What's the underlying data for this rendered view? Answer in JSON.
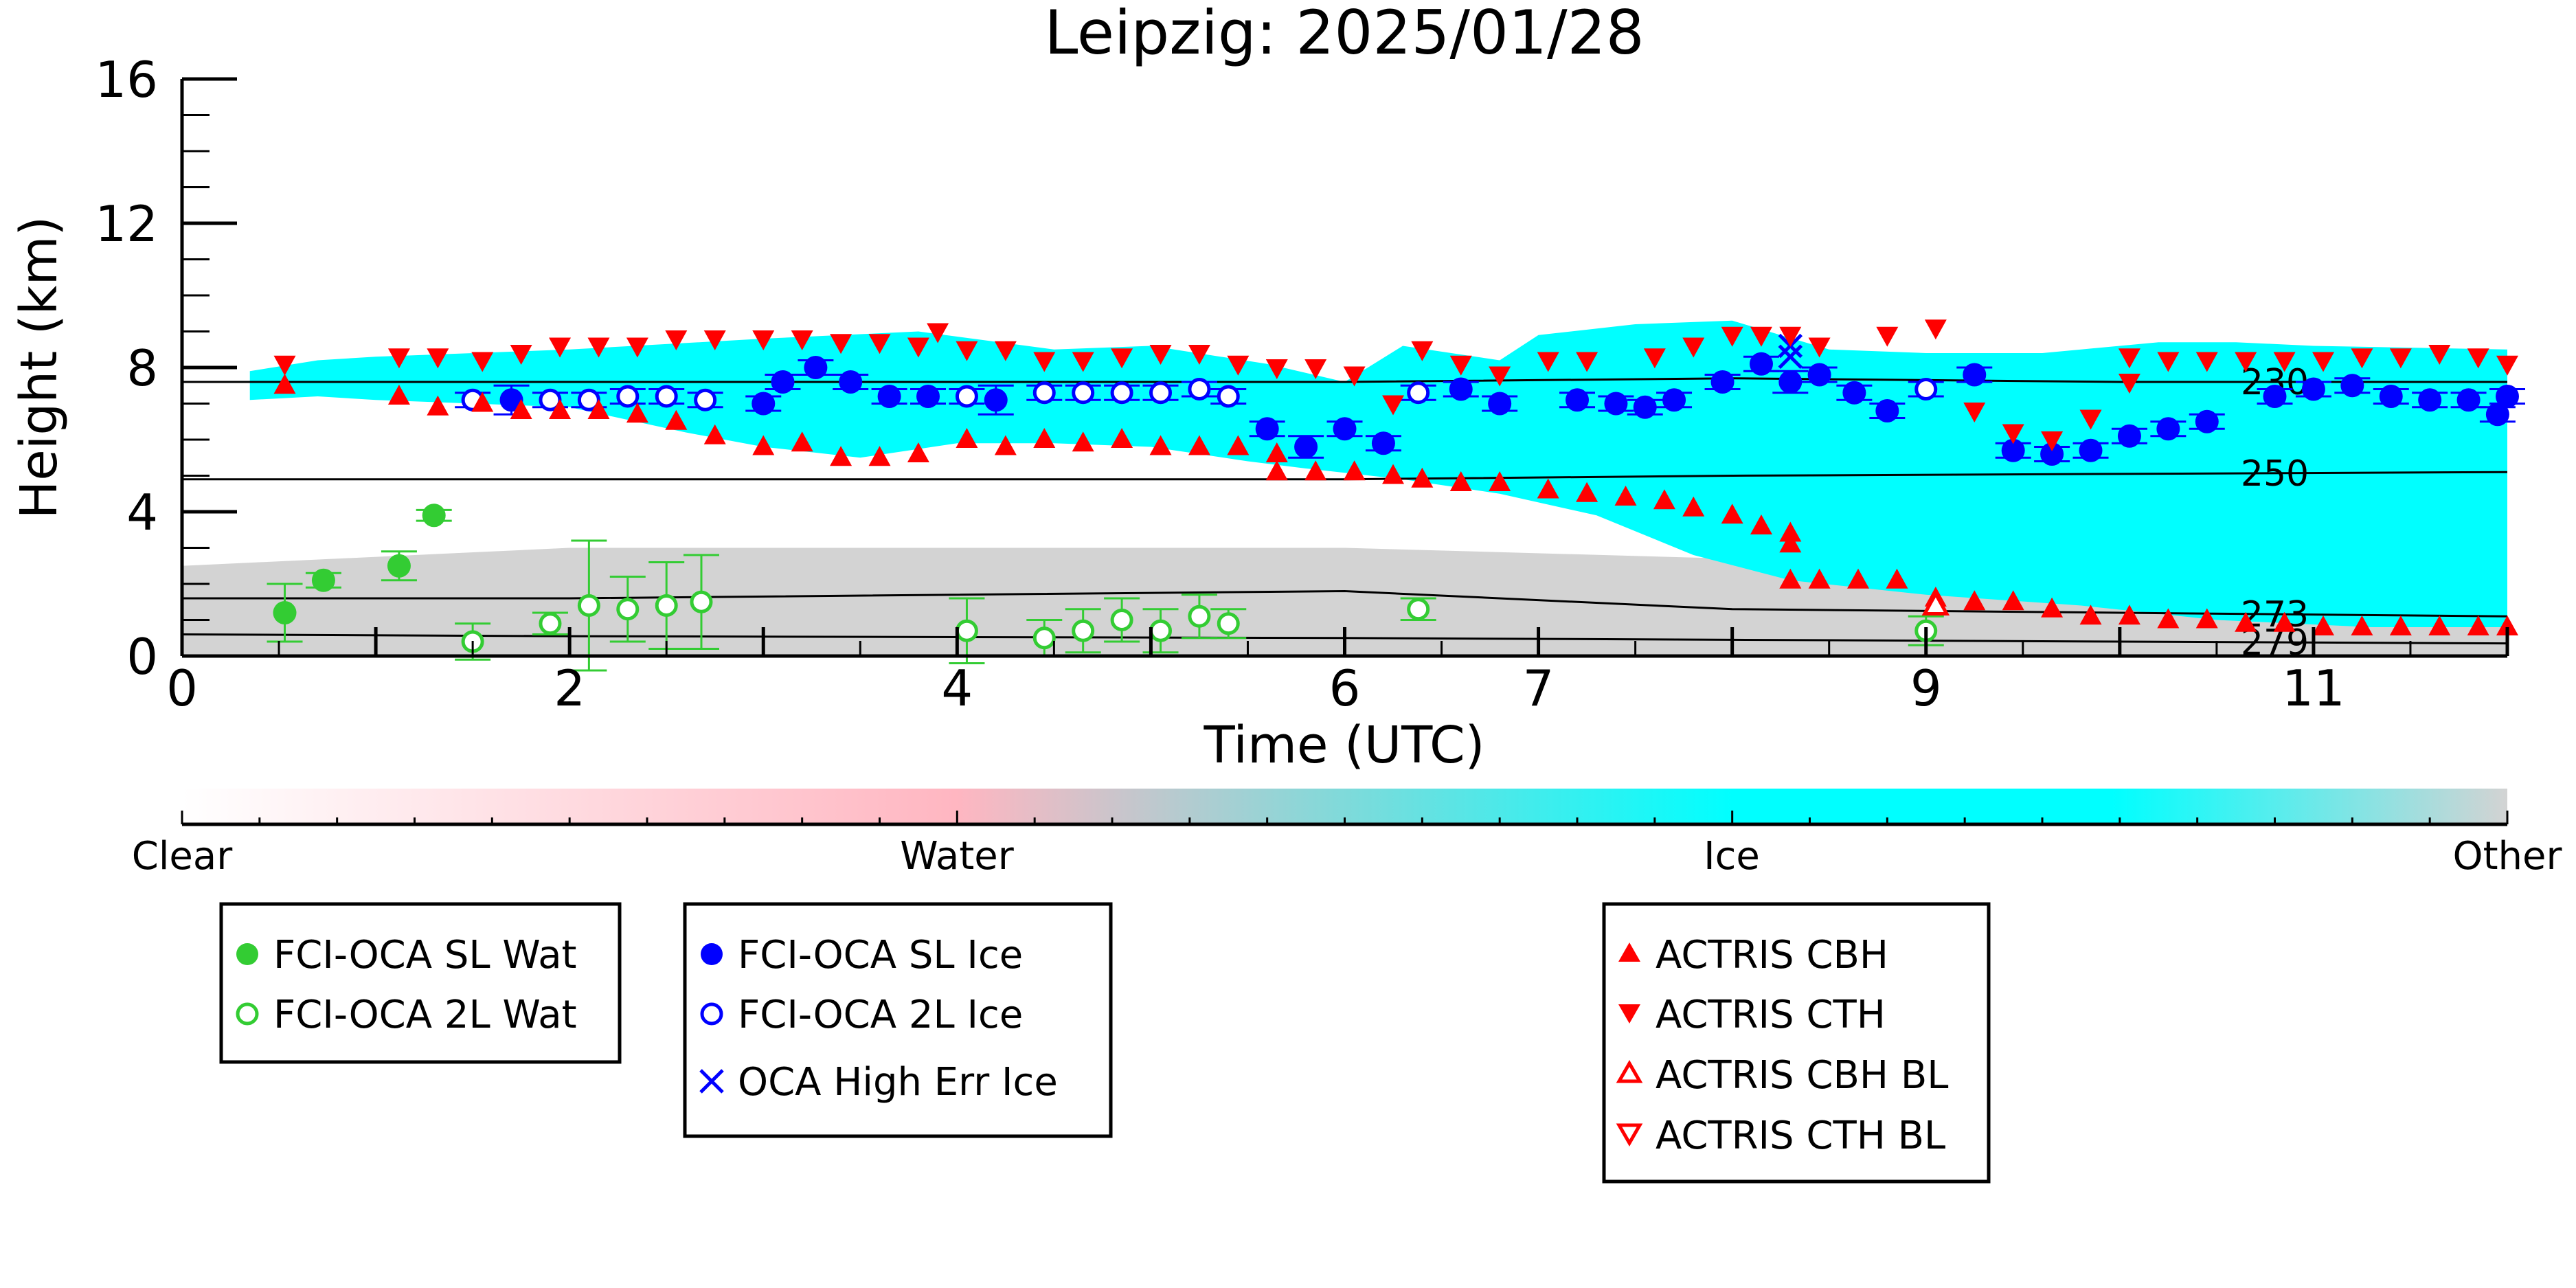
{
  "chart_data": {
    "type": "scatter",
    "title": "Leipzig: 2025/01/28",
    "xlabel": "Time (UTC)",
    "ylabel": "Height (km)",
    "xlim": [
      0,
      12
    ],
    "ylim": [
      0,
      16
    ],
    "x_ticks": [
      0,
      2,
      4,
      6,
      7,
      9,
      11
    ],
    "x_tick_labels": [
      "0",
      "2",
      "4",
      "6",
      "7",
      "9",
      "11"
    ],
    "y_ticks": [
      0,
      4,
      8,
      12,
      16
    ],
    "y_tick_labels": [
      "0",
      "4",
      "8",
      "12",
      "16"
    ],
    "colorbar": {
      "labels": [
        "Clear",
        "Water",
        "Ice",
        "Other"
      ],
      "colors": [
        "#ffffff",
        "#ffb6c1",
        "#00ffff",
        "#d3d3d3"
      ]
    },
    "background": {
      "ice_color": "#00ffff",
      "other_color": "#d3d3d3",
      "ice_top": [
        [
          0.35,
          7.9
        ],
        [
          0.7,
          8.2
        ],
        [
          1.0,
          8.3
        ],
        [
          2.0,
          8.5
        ],
        [
          3.0,
          8.8
        ],
        [
          3.8,
          9.0
        ],
        [
          4.5,
          8.5
        ],
        [
          5.0,
          8.6
        ],
        [
          5.6,
          8.1
        ],
        [
          6.0,
          7.6
        ],
        [
          6.3,
          8.6
        ],
        [
          6.8,
          8.2
        ],
        [
          7.0,
          8.9
        ],
        [
          7.5,
          9.2
        ],
        [
          8.0,
          9.3
        ],
        [
          8.5,
          8.5
        ],
        [
          9.0,
          8.4
        ],
        [
          9.6,
          8.4
        ],
        [
          10.2,
          8.7
        ],
        [
          10.6,
          8.7
        ],
        [
          11.0,
          8.6
        ],
        [
          12.0,
          8.5
        ]
      ],
      "ice_bottom": [
        [
          0.35,
          7.1
        ],
        [
          0.7,
          7.2
        ],
        [
          1.0,
          7.1
        ],
        [
          2.0,
          6.9
        ],
        [
          2.6,
          6.2
        ],
        [
          3.0,
          5.8
        ],
        [
          3.5,
          5.5
        ],
        [
          4.0,
          5.9
        ],
        [
          4.5,
          5.9
        ],
        [
          5.0,
          5.8
        ],
        [
          5.5,
          5.4
        ],
        [
          5.8,
          5.2
        ],
        [
          6.3,
          4.9
        ],
        [
          6.8,
          4.5
        ],
        [
          7.3,
          3.9
        ],
        [
          7.8,
          2.8
        ],
        [
          8.3,
          2.1
        ],
        [
          9.0,
          1.7
        ],
        [
          9.8,
          1.4
        ],
        [
          10.5,
          1.0
        ],
        [
          11.3,
          0.8
        ],
        [
          12.0,
          0.8
        ]
      ],
      "other_top": [
        [
          0,
          2.5
        ],
        [
          2,
          3.0
        ],
        [
          4,
          3.0
        ],
        [
          6,
          3.0
        ],
        [
          8,
          2.7
        ],
        [
          9,
          2.3
        ],
        [
          10,
          1.8
        ],
        [
          12,
          1.6
        ]
      ]
    },
    "contours": [
      {
        "label": "230",
        "y": [
          7.6,
          7.6,
          7.6,
          7.7,
          7.6,
          7.6
        ]
      },
      {
        "label": "250",
        "y": [
          4.9,
          4.9,
          4.9,
          5.0,
          5.05,
          5.1
        ]
      },
      {
        "label": "273",
        "y": [
          1.6,
          1.6,
          1.8,
          1.3,
          1.2,
          1.1
        ]
      },
      {
        "label": "279",
        "y": [
          0.6,
          0.55,
          0.5,
          0.45,
          0.4,
          0.35
        ]
      }
    ],
    "contour_x": [
      0,
      2,
      6,
      8,
      10,
      12
    ],
    "series": [
      {
        "name": "FCI-OCA SL Wat",
        "marker": "filled-circle",
        "color": "#33cc33",
        "points": [
          [
            0.53,
            1.2,
            0.8
          ],
          [
            0.73,
            2.1,
            0.2
          ],
          [
            1.12,
            2.5,
            0.4
          ],
          [
            1.3,
            3.9,
            0.15
          ]
        ]
      },
      {
        "name": "FCI-OCA 2L Wat",
        "marker": "open-circle",
        "color": "#33cc33",
        "points": [
          [
            1.5,
            0.4,
            0.5
          ],
          [
            1.9,
            0.9,
            0.3
          ],
          [
            2.1,
            1.4,
            1.8
          ],
          [
            2.3,
            1.3,
            0.9
          ],
          [
            2.5,
            1.4,
            1.2
          ],
          [
            2.68,
            1.5,
            1.3
          ],
          [
            4.05,
            0.7,
            0.9
          ],
          [
            4.45,
            0.5,
            0.5
          ],
          [
            4.65,
            0.7,
            0.6
          ],
          [
            4.85,
            1.0,
            0.6
          ],
          [
            5.05,
            0.7,
            0.6
          ],
          [
            5.25,
            1.1,
            0.6
          ],
          [
            5.4,
            0.9,
            0.4
          ],
          [
            6.38,
            1.3,
            0.3
          ],
          [
            9.0,
            0.7,
            0.4
          ]
        ]
      },
      {
        "name": "FCI-OCA SL Ice",
        "marker": "filled-circle",
        "color": "#0000ff",
        "points": [
          [
            1.7,
            7.1,
            0.4
          ],
          [
            3.0,
            7.0,
            0.2
          ],
          [
            3.1,
            7.6,
            0.2
          ],
          [
            3.27,
            8.0,
            0.2
          ],
          [
            3.45,
            7.6,
            0.2
          ],
          [
            3.65,
            7.2,
            0.2
          ],
          [
            3.85,
            7.2,
            0.2
          ],
          [
            4.2,
            7.1,
            0.4
          ],
          [
            5.6,
            6.3,
            0.2
          ],
          [
            5.8,
            5.8,
            0.3
          ],
          [
            6.0,
            6.3,
            0.2
          ],
          [
            6.2,
            5.9,
            0.2
          ],
          [
            6.6,
            7.4,
            0.2
          ],
          [
            6.8,
            7.0,
            0.2
          ],
          [
            7.2,
            7.1,
            0.2
          ],
          [
            7.4,
            7.0,
            0.2
          ],
          [
            7.55,
            6.9,
            0.2
          ],
          [
            7.7,
            7.1,
            0.2
          ],
          [
            7.95,
            7.6,
            0.2
          ],
          [
            8.15,
            8.1,
            0.2
          ],
          [
            8.3,
            7.6,
            0.3
          ],
          [
            8.45,
            7.8,
            0.2
          ],
          [
            8.63,
            7.3,
            0.2
          ],
          [
            8.8,
            6.8,
            0.2
          ],
          [
            9.25,
            7.8,
            0.2
          ],
          [
            9.45,
            5.7,
            0.2
          ],
          [
            9.65,
            5.6,
            0.2
          ],
          [
            9.85,
            5.7,
            0.2
          ],
          [
            10.05,
            6.1,
            0.2
          ],
          [
            10.25,
            6.3,
            0.2
          ],
          [
            10.45,
            6.5,
            0.2
          ],
          [
            10.8,
            7.2,
            0.2
          ],
          [
            11.0,
            7.4,
            0.2
          ],
          [
            11.2,
            7.5,
            0.2
          ],
          [
            11.4,
            7.2,
            0.2
          ],
          [
            11.6,
            7.1,
            0.2
          ],
          [
            11.8,
            7.1,
            0.2
          ],
          [
            11.95,
            6.7,
            0.2
          ],
          [
            12.0,
            7.2,
            0.2
          ]
        ]
      },
      {
        "name": "FCI-OCA 2L Ice",
        "marker": "open-circle",
        "color": "#0000ff",
        "points": [
          [
            1.5,
            7.1,
            0.2
          ],
          [
            1.9,
            7.1,
            0.2
          ],
          [
            2.1,
            7.1,
            0.2
          ],
          [
            2.3,
            7.2,
            0.2
          ],
          [
            2.5,
            7.2,
            0.2
          ],
          [
            2.7,
            7.1,
            0.2
          ],
          [
            4.05,
            7.2,
            0.2
          ],
          [
            4.45,
            7.3,
            0.2
          ],
          [
            4.65,
            7.3,
            0.2
          ],
          [
            4.85,
            7.3,
            0.2
          ],
          [
            5.05,
            7.3,
            0.2
          ],
          [
            5.25,
            7.4,
            0.2
          ],
          [
            5.4,
            7.2,
            0.2
          ],
          [
            6.38,
            7.3,
            0.2
          ],
          [
            9.0,
            7.4,
            0.2
          ]
        ]
      },
      {
        "name": "OCA High Err Ice",
        "marker": "x",
        "color": "#0000ff",
        "points": [
          [
            8.3,
            8.3
          ],
          [
            8.3,
            8.6
          ]
        ]
      },
      {
        "name": "ACTRIS CBH",
        "marker": "triangle-up-filled",
        "color": "#ff0000",
        "points": [
          [
            0.53,
            7.5
          ],
          [
            1.12,
            7.2
          ],
          [
            1.32,
            6.9
          ],
          [
            1.55,
            7.0
          ],
          [
            1.75,
            6.8
          ],
          [
            1.95,
            6.8
          ],
          [
            2.15,
            6.8
          ],
          [
            2.35,
            6.7
          ],
          [
            2.55,
            6.5
          ],
          [
            2.75,
            6.1
          ],
          [
            3.0,
            5.8
          ],
          [
            3.2,
            5.9
          ],
          [
            3.4,
            5.5
          ],
          [
            3.6,
            5.5
          ],
          [
            3.8,
            5.6
          ],
          [
            4.05,
            6.0
          ],
          [
            4.25,
            5.8
          ],
          [
            4.45,
            6.0
          ],
          [
            4.65,
            5.9
          ],
          [
            4.85,
            6.0
          ],
          [
            5.05,
            5.8
          ],
          [
            5.25,
            5.8
          ],
          [
            5.45,
            5.8
          ],
          [
            5.65,
            5.6
          ],
          [
            5.65,
            5.1
          ],
          [
            5.85,
            5.1
          ],
          [
            6.05,
            5.1
          ],
          [
            6.25,
            5.0
          ],
          [
            6.4,
            4.9
          ],
          [
            6.6,
            4.8
          ],
          [
            6.8,
            4.8
          ],
          [
            7.05,
            4.6
          ],
          [
            7.25,
            4.5
          ],
          [
            7.45,
            4.4
          ],
          [
            7.65,
            4.3
          ],
          [
            7.8,
            4.1
          ],
          [
            8.0,
            3.9
          ],
          [
            8.15,
            3.6
          ],
          [
            8.3,
            3.4
          ],
          [
            8.3,
            3.1
          ],
          [
            8.3,
            2.1
          ],
          [
            8.45,
            2.1
          ],
          [
            8.65,
            2.1
          ],
          [
            8.85,
            2.1
          ],
          [
            9.05,
            1.6
          ],
          [
            9.25,
            1.5
          ],
          [
            9.45,
            1.5
          ],
          [
            9.65,
            1.3
          ],
          [
            9.85,
            1.1
          ],
          [
            10.05,
            1.1
          ],
          [
            10.25,
            1.0
          ],
          [
            10.45,
            1.0
          ],
          [
            10.65,
            0.9
          ],
          [
            10.85,
            0.9
          ],
          [
            11.05,
            0.8
          ],
          [
            11.25,
            0.8
          ],
          [
            11.45,
            0.8
          ],
          [
            11.65,
            0.8
          ],
          [
            11.85,
            0.8
          ],
          [
            12.0,
            0.8
          ]
        ]
      },
      {
        "name": "ACTRIS CTH",
        "marker": "triangle-down-filled",
        "color": "#ff0000",
        "points": [
          [
            0.53,
            8.1
          ],
          [
            1.12,
            8.3
          ],
          [
            1.32,
            8.3
          ],
          [
            1.55,
            8.2
          ],
          [
            1.75,
            8.4
          ],
          [
            1.95,
            8.6
          ],
          [
            2.15,
            8.6
          ],
          [
            2.35,
            8.6
          ],
          [
            2.55,
            8.8
          ],
          [
            2.75,
            8.8
          ],
          [
            3.0,
            8.8
          ],
          [
            3.2,
            8.8
          ],
          [
            3.4,
            8.7
          ],
          [
            3.6,
            8.7
          ],
          [
            3.8,
            8.6
          ],
          [
            3.9,
            9.0
          ],
          [
            4.05,
            8.5
          ],
          [
            4.25,
            8.5
          ],
          [
            4.45,
            8.2
          ],
          [
            4.65,
            8.2
          ],
          [
            4.85,
            8.3
          ],
          [
            5.05,
            8.4
          ],
          [
            5.25,
            8.4
          ],
          [
            5.45,
            8.1
          ],
          [
            5.65,
            8.0
          ],
          [
            5.85,
            8.0
          ],
          [
            6.05,
            7.8
          ],
          [
            6.25,
            7.0
          ],
          [
            6.4,
            8.5
          ],
          [
            6.6,
            8.1
          ],
          [
            6.8,
            7.8
          ],
          [
            7.05,
            8.2
          ],
          [
            7.25,
            8.2
          ],
          [
            7.6,
            8.3
          ],
          [
            7.8,
            8.6
          ],
          [
            8.0,
            8.9
          ],
          [
            8.15,
            8.9
          ],
          [
            8.3,
            8.9
          ],
          [
            8.45,
            8.6
          ],
          [
            8.8,
            8.9
          ],
          [
            9.05,
            9.1
          ],
          [
            9.25,
            6.8
          ],
          [
            9.45,
            6.2
          ],
          [
            9.65,
            6.0
          ],
          [
            9.85,
            6.6
          ],
          [
            10.05,
            7.6
          ],
          [
            10.05,
            8.3
          ],
          [
            10.25,
            8.2
          ],
          [
            10.45,
            8.2
          ],
          [
            10.65,
            8.2
          ],
          [
            10.85,
            8.2
          ],
          [
            11.05,
            8.2
          ],
          [
            11.25,
            8.3
          ],
          [
            11.45,
            8.3
          ],
          [
            11.65,
            8.4
          ],
          [
            11.85,
            8.3
          ],
          [
            12.0,
            8.1
          ]
        ]
      },
      {
        "name": "ACTRIS CBH BL",
        "marker": "triangle-up-open",
        "color": "#ff0000",
        "points": [
          [
            9.05,
            1.4
          ]
        ]
      },
      {
        "name": "ACTRIS CTH BL",
        "marker": "triangle-down-open",
        "color": "#ff0000",
        "points": []
      }
    ]
  },
  "legend": {
    "water": [
      "FCI-OCA SL Wat",
      "FCI-OCA 2L Wat"
    ],
    "ice": [
      "FCI-OCA SL Ice",
      "FCI-OCA 2L Ice",
      "OCA High Err Ice"
    ],
    "actris": [
      "ACTRIS CBH",
      "ACTRIS CTH",
      "ACTRIS CBH BL",
      "ACTRIS CTH BL"
    ]
  }
}
